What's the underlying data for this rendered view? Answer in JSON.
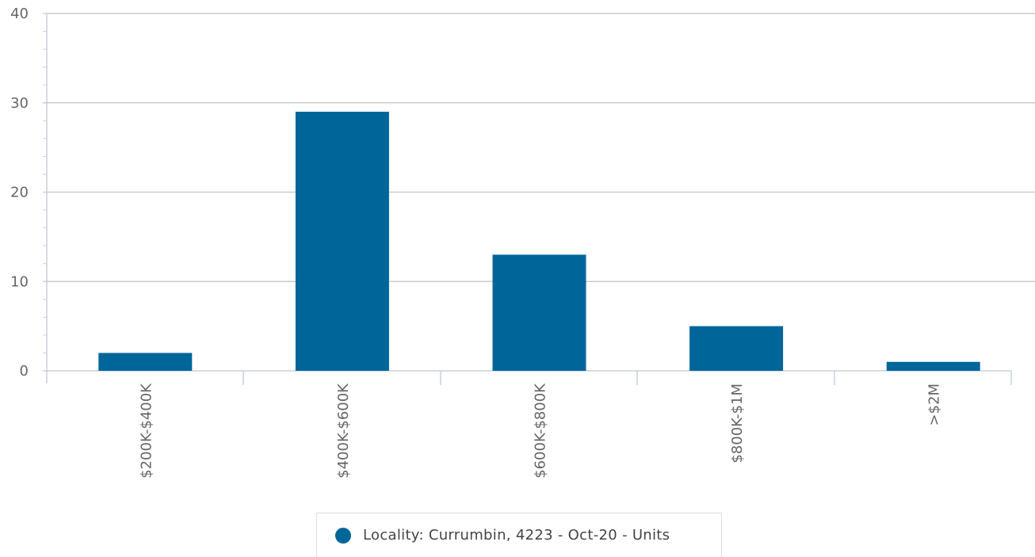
{
  "chart_data": {
    "type": "bar",
    "categories": [
      "$200K-$400K",
      "$400K-$600K",
      "$600K-$800K",
      "$800K-$1M",
      ">$2M"
    ],
    "series": [
      {
        "name": "Locality: Currumbin, 4223 - Oct-20 - Units",
        "values": [
          2,
          29,
          13,
          5,
          1
        ]
      }
    ],
    "y_ticks": [
      "0",
      "10",
      "20",
      "30",
      "40"
    ],
    "ylim": [
      0,
      40
    ],
    "grid": true,
    "legend_position": "bottom-center",
    "colors": {
      "bar": "#006699",
      "grid": "#cccccc",
      "axis": "#c8d0dc",
      "text": "#666666"
    }
  }
}
